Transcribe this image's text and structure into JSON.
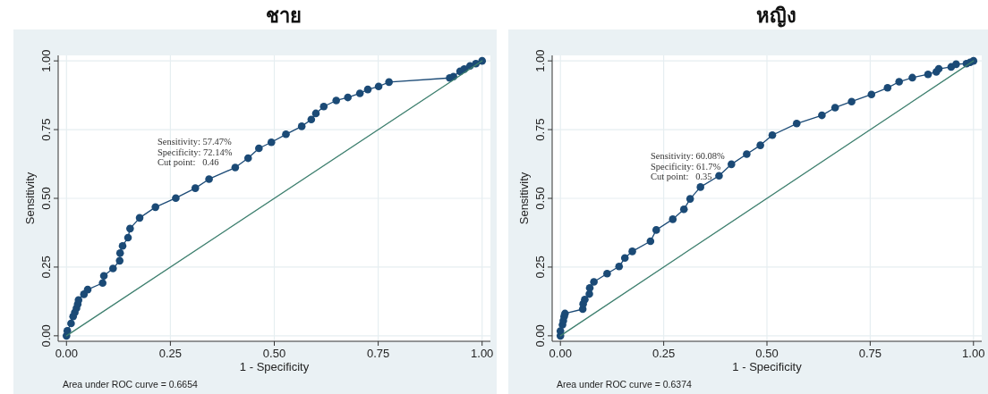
{
  "chart_data": [
    {
      "type": "line",
      "title": "ชาย",
      "xlabel": "1 - Specificity",
      "ylabel": "Sensitivity",
      "xlim": [
        -0.02,
        1.02
      ],
      "ylim": [
        -0.02,
        1.02
      ],
      "xticks": [
        {
          "value": 0,
          "label": "0.00"
        },
        {
          "value": 0.25,
          "label": "0.25"
        },
        {
          "value": 0.5,
          "label": "0.50"
        },
        {
          "value": 0.75,
          "label": "0.75"
        },
        {
          "value": 1,
          "label": "1.00"
        }
      ],
      "yticks": [
        {
          "value": 0,
          "label": "0.00"
        },
        {
          "value": 0.25,
          "label": "0.25"
        },
        {
          "value": 0.5,
          "label": "0.50"
        },
        {
          "value": 0.75,
          "label": "0.75"
        },
        {
          "value": 1,
          "label": "1.00"
        }
      ],
      "grid": true,
      "series": [
        {
          "marker": "circle",
          "color": "#1b4a76",
          "x": [
            0,
            0.002,
            0.011,
            0.016,
            0.02,
            0.024,
            0.027,
            0.029,
            0.042,
            0.051,
            0.087,
            0.09,
            0.112,
            0.128,
            0.129,
            0.135,
            0.148,
            0.153,
            0.176,
            0.214,
            0.263,
            0.31,
            0.343,
            0.406,
            0.437,
            0.463,
            0.493,
            0.528,
            0.566,
            0.589,
            0.6,
            0.619,
            0.649,
            0.677,
            0.706,
            0.725,
            0.751,
            0.776,
            0.922,
            0.931,
            0.947,
            0.957,
            0.971,
            0.985,
            1
          ],
          "values": [
            0,
            0.018,
            0.045,
            0.07,
            0.085,
            0.1,
            0.115,
            0.13,
            0.151,
            0.168,
            0.192,
            0.218,
            0.245,
            0.273,
            0.301,
            0.327,
            0.357,
            0.39,
            0.429,
            0.468,
            0.501,
            0.537,
            0.57,
            0.612,
            0.646,
            0.682,
            0.704,
            0.733,
            0.762,
            0.787,
            0.809,
            0.834,
            0.856,
            0.867,
            0.882,
            0.896,
            0.907,
            0.923,
            0.938,
            0.943,
            0.962,
            0.97,
            0.982,
            0.99,
            1
          ]
        },
        {
          "marker": "none",
          "color": "#3d7f6e",
          "x": [
            0,
            1
          ],
          "values": [
            0,
            1
          ]
        }
      ],
      "annotations": [
        "Sensitivity: 57.47%\nSpecificity: 72.14%\nCut point:   0.46",
        "Area under ROC curve = 0.6654"
      ]
    },
    {
      "type": "line",
      "title": "หญิง",
      "xlabel": "1 - Specificity",
      "ylabel": "Sensitivity",
      "xlim": [
        -0.02,
        1.02
      ],
      "ylim": [
        -0.02,
        1.02
      ],
      "xticks": [
        {
          "value": 0,
          "label": "0.00"
        },
        {
          "value": 0.25,
          "label": "0.25"
        },
        {
          "value": 0.5,
          "label": "0.50"
        },
        {
          "value": 0.75,
          "label": "0.75"
        },
        {
          "value": 1,
          "label": "1.00"
        }
      ],
      "yticks": [
        {
          "value": 0,
          "label": "0.00"
        },
        {
          "value": 0.25,
          "label": "0.25"
        },
        {
          "value": 0.5,
          "label": "0.50"
        },
        {
          "value": 0.75,
          "label": "0.75"
        },
        {
          "value": 1,
          "label": "1.00"
        }
      ],
      "grid": true,
      "series": [
        {
          "marker": "circle",
          "color": "#1b4a76",
          "x": [
            0,
            0,
            0.005,
            0.007,
            0.009,
            0.011,
            0.054,
            0.055,
            0.059,
            0.07,
            0.071,
            0.081,
            0.113,
            0.142,
            0.156,
            0.174,
            0.218,
            0.232,
            0.272,
            0.299,
            0.314,
            0.339,
            0.384,
            0.414,
            0.451,
            0.484,
            0.513,
            0.572,
            0.633,
            0.665,
            0.705,
            0.753,
            0.792,
            0.82,
            0.852,
            0.89,
            0.91,
            0.916,
            0.946,
            0.958,
            0.983,
            0.992,
            1
          ],
          "values": [
            0,
            0.017,
            0.04,
            0.055,
            0.07,
            0.081,
            0.097,
            0.116,
            0.132,
            0.152,
            0.174,
            0.196,
            0.226,
            0.252,
            0.283,
            0.307,
            0.344,
            0.385,
            0.424,
            0.46,
            0.498,
            0.541,
            0.582,
            0.624,
            0.661,
            0.693,
            0.73,
            0.772,
            0.802,
            0.83,
            0.852,
            0.878,
            0.902,
            0.924,
            0.939,
            0.951,
            0.96,
            0.971,
            0.978,
            0.988,
            0.99,
            0.995,
            1
          ]
        },
        {
          "marker": "none",
          "color": "#3d7f6e",
          "x": [
            0,
            1
          ],
          "values": [
            0,
            1
          ]
        }
      ],
      "annotations": [
        "Sensitivity: 60.08%\nSpecificity: 61.7%\nCut point:   0.35",
        "Area under ROC curve = 0.6374"
      ]
    }
  ]
}
